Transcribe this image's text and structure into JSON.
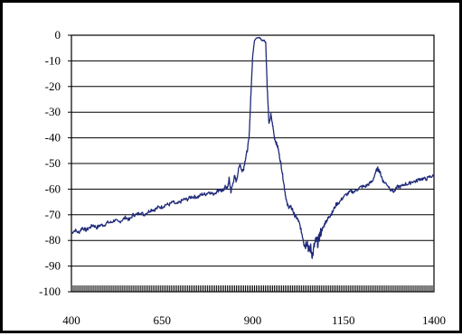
{
  "chart_data": {
    "type": "line",
    "title": "",
    "xlabel": "",
    "ylabel": "",
    "xlim": [
      400,
      1400
    ],
    "ylim": [
      -100,
      0
    ],
    "xticks": [
      400,
      650,
      900,
      1150,
      1400
    ],
    "yticks": [
      0,
      -10,
      -20,
      -30,
      -40,
      -50,
      -60,
      -70,
      -80,
      -90,
      -100
    ],
    "x_tick_labels": [
      "400",
      "650",
      "900",
      "1150",
      "1400"
    ],
    "y_tick_labels": [
      "0",
      "-10",
      "-20",
      "-30",
      "-40",
      "-50",
      "-60",
      "-70",
      "-80",
      "-90",
      "-100"
    ],
    "grid": "horizontal",
    "legend": "none",
    "series": [
      {
        "color": "#1f2a7a",
        "x": [
          400,
          410,
          420,
          430,
          440,
          450,
          460,
          470,
          480,
          490,
          500,
          510,
          520,
          530,
          540,
          550,
          560,
          570,
          580,
          590,
          600,
          610,
          620,
          630,
          640,
          650,
          660,
          670,
          680,
          690,
          700,
          710,
          720,
          730,
          740,
          750,
          760,
          770,
          780,
          790,
          800,
          810,
          815,
          820,
          825,
          830,
          835,
          840,
          845,
          850,
          855,
          860,
          865,
          870,
          875,
          880,
          885,
          890,
          893,
          896,
          900,
          905,
          910,
          915,
          920,
          925,
          928,
          932,
          936,
          940,
          945,
          950,
          955,
          960,
          965,
          970,
          975,
          980,
          985,
          990,
          995,
          1000,
          1005,
          1010,
          1015,
          1020,
          1025,
          1030,
          1035,
          1040,
          1045,
          1050,
          1055,
          1060,
          1065,
          1070,
          1075,
          1080,
          1085,
          1090,
          1095,
          1100,
          1105,
          1110,
          1115,
          1120,
          1130,
          1140,
          1150,
          1160,
          1170,
          1180,
          1190,
          1200,
          1210,
          1220,
          1230,
          1240,
          1245,
          1250,
          1255,
          1260,
          1270,
          1280,
          1290,
          1300,
          1310,
          1320,
          1330,
          1340,
          1350,
          1360,
          1370,
          1380,
          1390,
          1400
        ],
        "y": [
          -77,
          -76,
          -77,
          -75,
          -76,
          -75,
          -74,
          -75,
          -74,
          -74,
          -73,
          -73,
          -72,
          -73,
          -72,
          -71,
          -72,
          -70,
          -70,
          -69,
          -70,
          -69,
          -68,
          -68,
          -67,
          -67,
          -66,
          -66,
          -65,
          -66,
          -65,
          -64,
          -64,
          -63,
          -63,
          -63,
          -62,
          -62,
          -61,
          -62,
          -61,
          -60,
          -61,
          -60,
          -59,
          -60,
          -56,
          -61,
          -58,
          -55,
          -57,
          -53,
          -50,
          -53,
          -52,
          -48,
          -45,
          -40,
          -30,
          -20,
          -8,
          -2,
          -1,
          -1,
          -1,
          -2,
          -2,
          -2,
          -3,
          -20,
          -35,
          -31,
          -35,
          -40,
          -42,
          -44,
          -48,
          -52,
          -57,
          -62,
          -66,
          -67,
          -67,
          -68,
          -70,
          -71,
          -72,
          -74,
          -77,
          -80,
          -82,
          -80,
          -84,
          -83,
          -86,
          -82,
          -80,
          -81,
          -78,
          -76,
          -75,
          -73,
          -72,
          -71,
          -70,
          -69,
          -66,
          -65,
          -63,
          -62,
          -61,
          -61,
          -60,
          -59,
          -59,
          -58,
          -57,
          -53,
          -52,
          -53,
          -55,
          -57,
          -58,
          -60,
          -61,
          -59,
          -59,
          -58,
          -58,
          -57,
          -57,
          -56,
          -56,
          -56,
          -55,
          -55
        ]
      }
    ]
  }
}
